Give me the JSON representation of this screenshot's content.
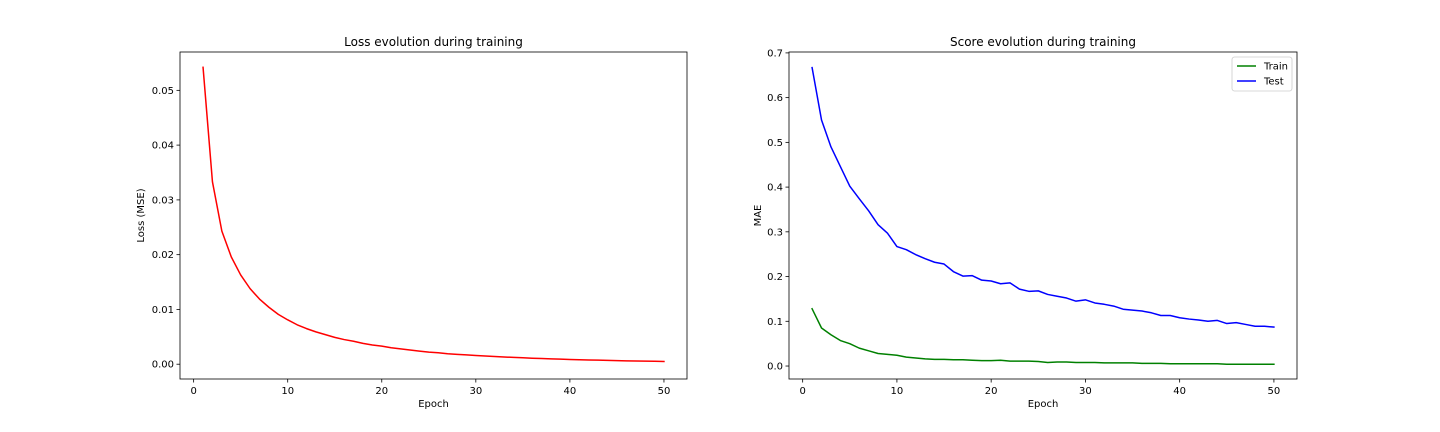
{
  "chart_data": [
    {
      "type": "line",
      "title": "Loss evolution during training",
      "xlabel": "Epoch",
      "ylabel": "Loss (MSE)",
      "xlim": [
        -1.45,
        52.45
      ],
      "ylim": [
        -0.0027,
        0.057
      ],
      "xticks": [
        0,
        10,
        20,
        30,
        40,
        50
      ],
      "xtick_labels": [
        "0",
        "10",
        "20",
        "30",
        "40",
        "50"
      ],
      "yticks": [
        0,
        0.01,
        0.02,
        0.03,
        0.04,
        0.05
      ],
      "ytick_labels": [
        "0.00",
        "0.01",
        "0.02",
        "0.03",
        "0.04",
        "0.05"
      ],
      "legend": null,
      "series": [
        {
          "color": "#ff0000",
          "x": [
            1,
            2,
            3,
            4,
            5,
            6,
            7,
            8,
            9,
            10,
            11,
            12,
            13,
            14,
            15,
            16,
            17,
            18,
            19,
            20,
            21,
            22,
            23,
            24,
            25,
            26,
            27,
            28,
            29,
            30,
            31,
            32,
            33,
            34,
            35,
            36,
            37,
            38,
            39,
            40,
            41,
            42,
            43,
            44,
            45,
            46,
            47,
            48,
            49,
            50
          ],
          "values": [
            0.0542,
            0.0333,
            0.0243,
            0.0196,
            0.0163,
            0.0138,
            0.0119,
            0.0104,
            0.0091,
            0.0081,
            0.0072,
            0.0065,
            0.0059,
            0.0054,
            0.0049,
            0.0045,
            0.0042,
            0.0038,
            0.0035,
            0.0033,
            0.003,
            0.0028,
            0.0026,
            0.0024,
            0.0022,
            0.0021,
            0.0019,
            0.0018,
            0.0017,
            0.0016,
            0.0015,
            0.0014,
            0.00132,
            0.00124,
            0.00117,
            0.0011,
            0.00104,
            0.00098,
            0.00092,
            0.00087,
            0.00082,
            0.00078,
            0.00074,
            0.0007,
            0.00066,
            0.00062,
            0.00059,
            0.00056,
            0.00053,
            0.0005
          ]
        }
      ]
    },
    {
      "type": "line",
      "title": "Score evolution during training",
      "xlabel": "Epoch",
      "ylabel": "MAE",
      "xlim": [
        -1.45,
        52.45
      ],
      "ylim": [
        -0.029,
        0.702
      ],
      "xticks": [
        0,
        10,
        20,
        30,
        40,
        50
      ],
      "xtick_labels": [
        "0",
        "10",
        "20",
        "30",
        "40",
        "50"
      ],
      "yticks": [
        0,
        0.1,
        0.2,
        0.3,
        0.4,
        0.5,
        0.6,
        0.7
      ],
      "ytick_labels": [
        "0.0",
        "0.1",
        "0.2",
        "0.3",
        "0.4",
        "0.5",
        "0.6",
        "0.7"
      ],
      "legend": "top-right",
      "series": [
        {
          "name": "Train",
          "color": "#008000",
          "x": [
            1,
            2,
            3,
            4,
            5,
            6,
            7,
            8,
            9,
            10,
            11,
            12,
            13,
            14,
            15,
            16,
            17,
            18,
            19,
            20,
            21,
            22,
            23,
            24,
            25,
            26,
            27,
            28,
            29,
            30,
            31,
            32,
            33,
            34,
            35,
            36,
            37,
            38,
            39,
            40,
            41,
            42,
            43,
            44,
            45,
            46,
            47,
            48,
            49,
            50
          ],
          "values": [
            0.128,
            0.085,
            0.07,
            0.057,
            0.05,
            0.04,
            0.034,
            0.028,
            0.026,
            0.024,
            0.02,
            0.018,
            0.016,
            0.015,
            0.015,
            0.014,
            0.014,
            0.013,
            0.012,
            0.012,
            0.013,
            0.011,
            0.011,
            0.011,
            0.01,
            0.008,
            0.009,
            0.009,
            0.008,
            0.008,
            0.008,
            0.007,
            0.007,
            0.007,
            0.007,
            0.006,
            0.006,
            0.006,
            0.005,
            0.005,
            0.005,
            0.005,
            0.005,
            0.005,
            0.004,
            0.004,
            0.004,
            0.004,
            0.004,
            0.004
          ]
        },
        {
          "name": "Test",
          "color": "#0000ff",
          "x": [
            1,
            2,
            3,
            4,
            5,
            6,
            7,
            8,
            9,
            10,
            11,
            12,
            13,
            14,
            15,
            16,
            17,
            18,
            19,
            20,
            21,
            22,
            23,
            24,
            25,
            26,
            27,
            28,
            29,
            30,
            31,
            32,
            33,
            34,
            35,
            36,
            37,
            38,
            39,
            40,
            41,
            42,
            43,
            44,
            45,
            46,
            47,
            48,
            49,
            50
          ],
          "values": [
            0.667,
            0.55,
            0.49,
            0.446,
            0.402,
            0.374,
            0.347,
            0.316,
            0.297,
            0.267,
            0.26,
            0.249,
            0.24,
            0.232,
            0.228,
            0.211,
            0.201,
            0.202,
            0.192,
            0.19,
            0.184,
            0.186,
            0.172,
            0.167,
            0.168,
            0.16,
            0.156,
            0.152,
            0.145,
            0.148,
            0.141,
            0.138,
            0.134,
            0.127,
            0.125,
            0.123,
            0.119,
            0.113,
            0.113,
            0.108,
            0.105,
            0.103,
            0.1,
            0.102,
            0.095,
            0.097,
            0.093,
            0.089,
            0.089,
            0.087
          ]
        }
      ]
    }
  ]
}
